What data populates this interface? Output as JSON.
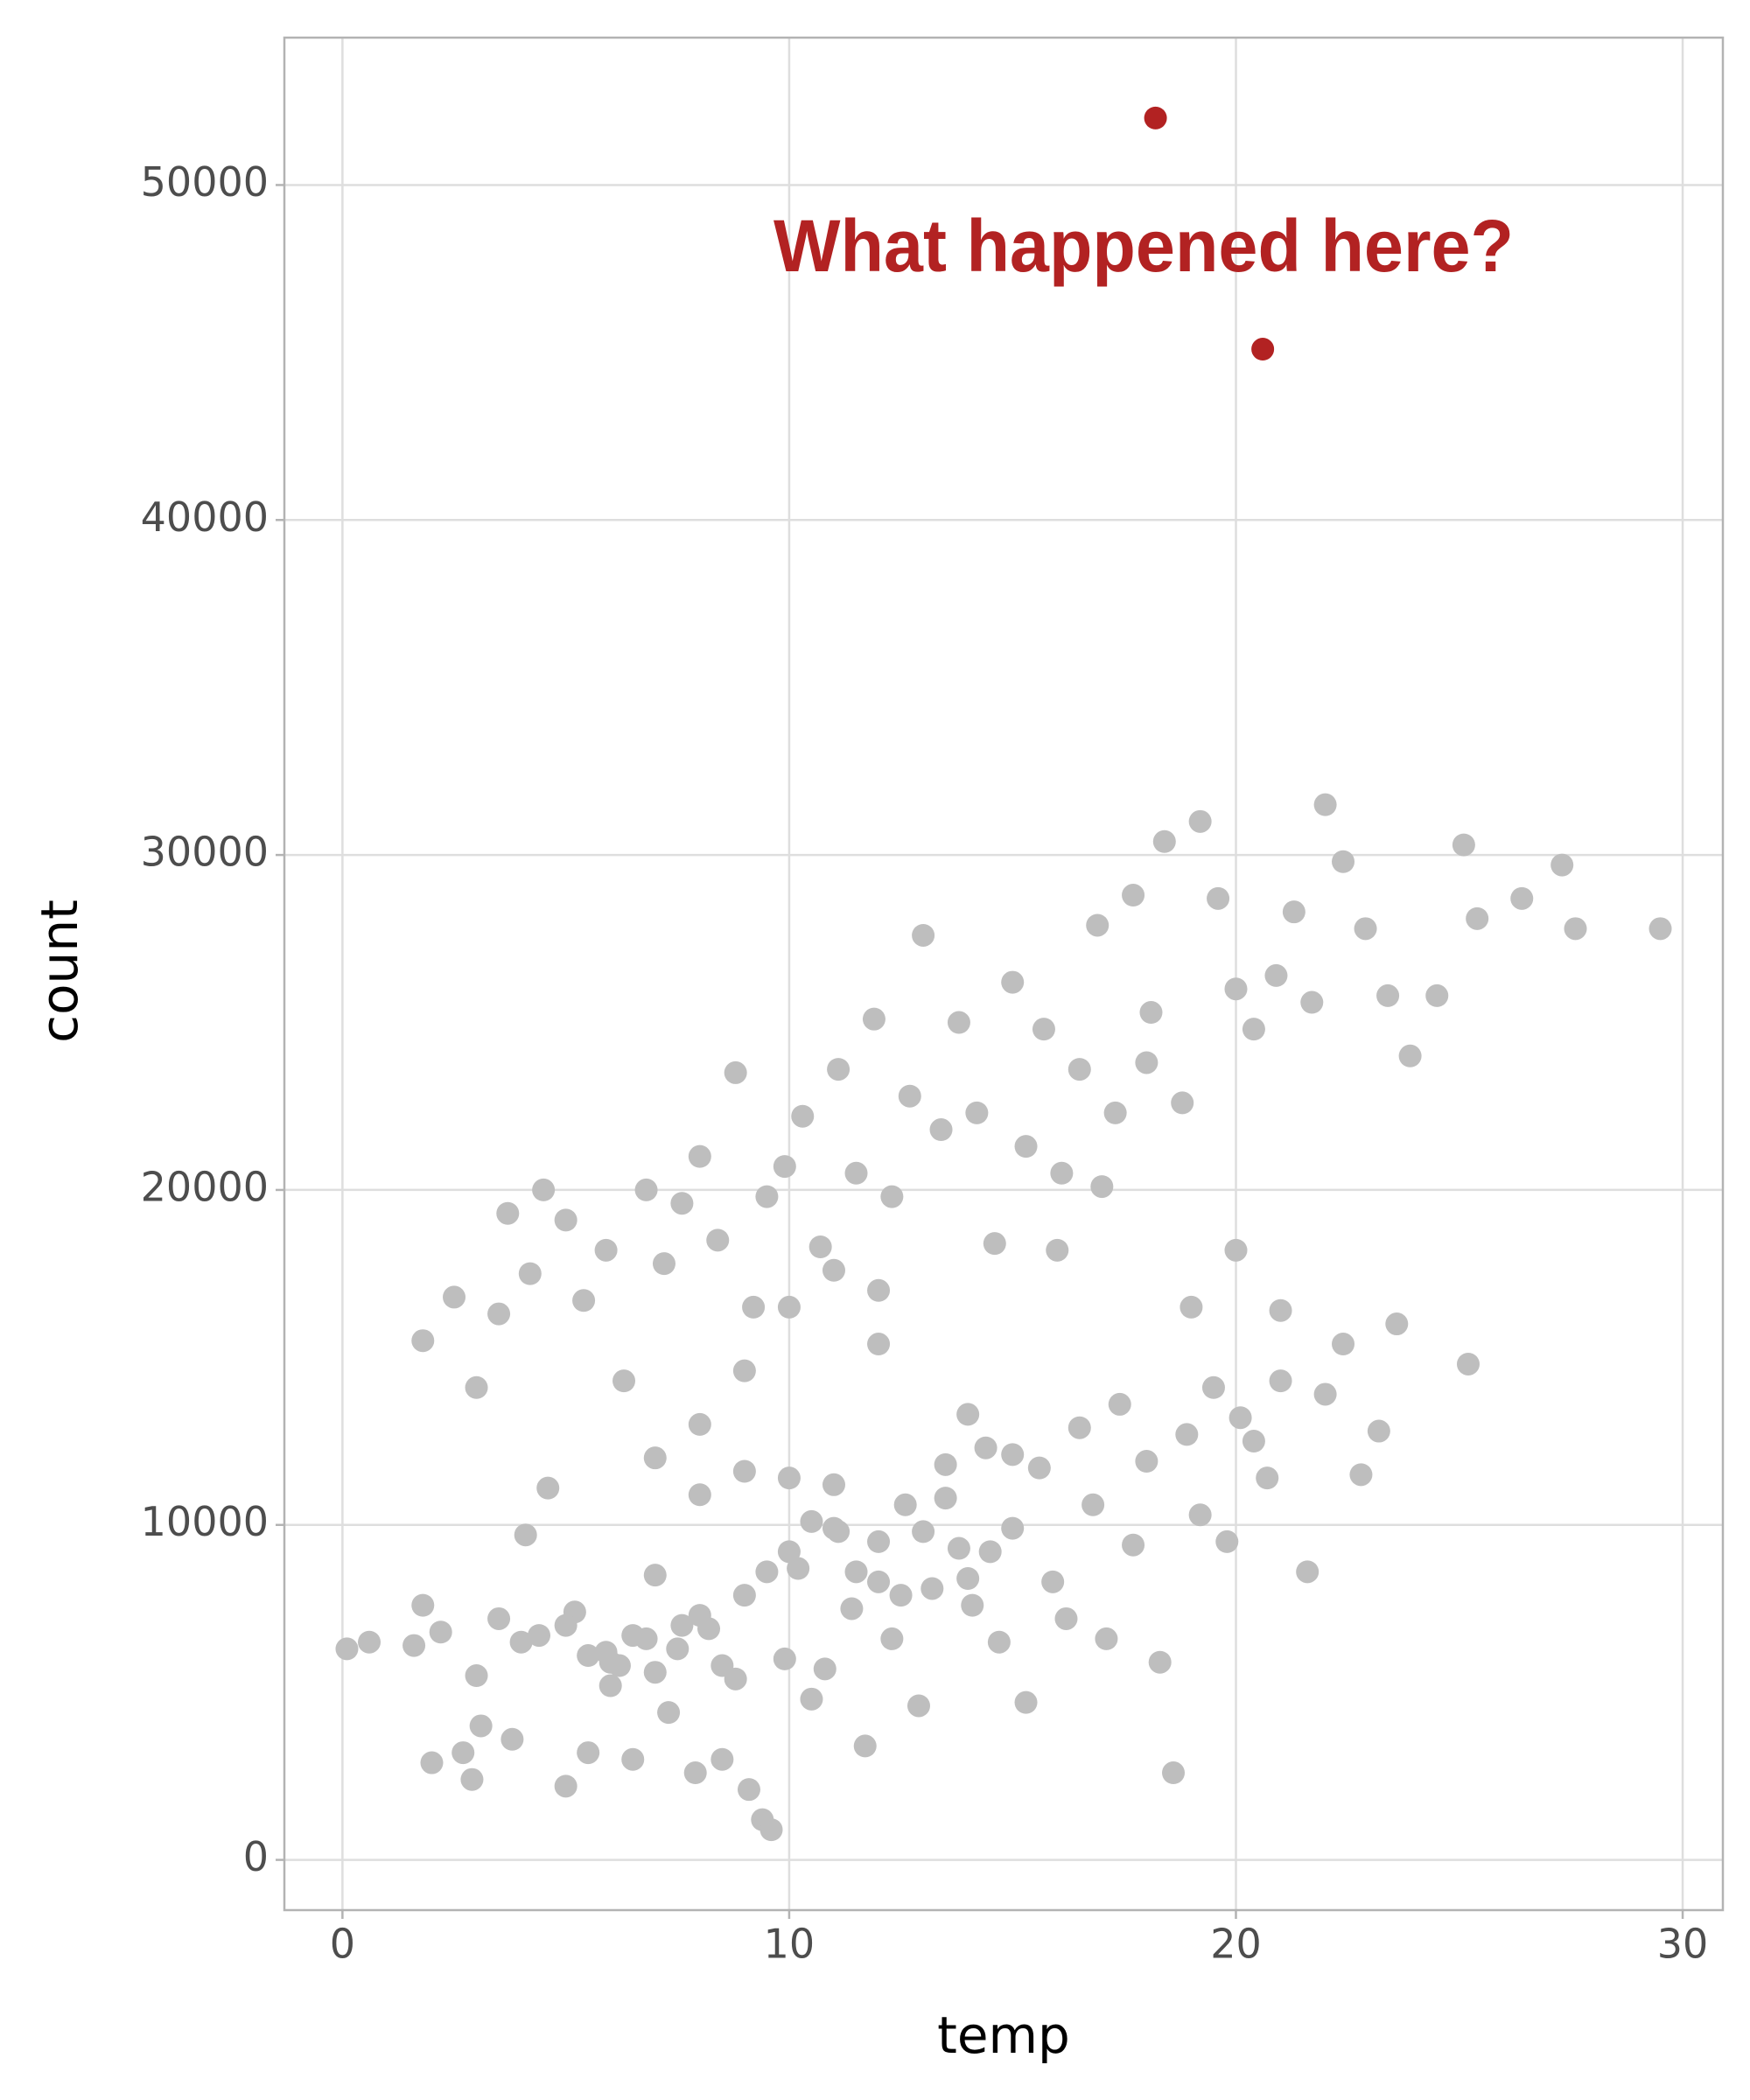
{
  "chart_data": {
    "type": "scatter",
    "x_label": "temp",
    "y_label": "count",
    "annotation": "What happened here?",
    "xlim": [
      -1.3,
      30.9
    ],
    "xticks": [
      0,
      10,
      20,
      30
    ],
    "ylim": [
      -1500,
      54400
    ],
    "yticks": [
      0,
      10000,
      20000,
      30000,
      40000,
      50000
    ],
    "grid": true,
    "series": [
      {
        "color": "#bebebe",
        "x": [
          0.1,
          0.6,
          1.6,
          1.8,
          2.0,
          2.2,
          2.7,
          2.9,
          3.1,
          3.5,
          3.8,
          4.1,
          4.4,
          4.6,
          5.0,
          5.2,
          5.5,
          5.9,
          6.2,
          6.5,
          6.8,
          7.0,
          7.3,
          7.6,
          7.9,
          8.2,
          8.5,
          8.8,
          9.1,
          9.4,
          9.6,
          9.9,
          10.2,
          10.5,
          10.8,
          11.1,
          11.4,
          11.7,
          12.0,
          12.3,
          12.6,
          12.9,
          13.2,
          13.5,
          13.8,
          14.1,
          14.4,
          14.7,
          15.0,
          15.3,
          15.6,
          15.9,
          16.2,
          16.5,
          16.8,
          17.1,
          17.4,
          17.7,
          18.0,
          18.3,
          18.6,
          18.9,
          19.2,
          19.5,
          19.8,
          20.1,
          20.4,
          20.7,
          21.0,
          21.6,
          22.0,
          22.4,
          22.8,
          23.2,
          23.6,
          25.2,
          8.0,
          9.0,
          10.0,
          11.0,
          1.8,
          2.5,
          3.0,
          3.5,
          3.7,
          4.2,
          4.5,
          5.0,
          5.4,
          5.9,
          6.3,
          6.8,
          7.2,
          7.6,
          8.0,
          8.4,
          8.8,
          9.2,
          9.5,
          9.9,
          10.3,
          10.7,
          11.1,
          11.5,
          11.9,
          12.3,
          12.7,
          13.0,
          13.4,
          13.8,
          14.2,
          14.6,
          15.0,
          15.3,
          15.7,
          16.1,
          16.5,
          16.9,
          17.3,
          17.7,
          18.1,
          18.4,
          18.8,
          19.2,
          19.6,
          20.0,
          20.4,
          20.9,
          21.3,
          21.7,
          22.0,
          22.4,
          22.9,
          23.4,
          23.9,
          24.5,
          25.1,
          25.4,
          26.4,
          27.3,
          27.6,
          29.5,
          16.0,
          17.0,
          18.0,
          19.0,
          20.0,
          21.0,
          12.0,
          14.0,
          10.5,
          11.0,
          11.5,
          12.0,
          12.5,
          13.0,
          13.5,
          14.0,
          14.5,
          15.0,
          5.5,
          6.0,
          6.5,
          7.0,
          7.5,
          8.0,
          8.5,
          9.0,
          9.5,
          10.0,
          3.0,
          4.0,
          5.0,
          6.0,
          7.0,
          8.0,
          9.0,
          10.0,
          11.0,
          12.0
        ],
        "values": [
          6300,
          6500,
          6400,
          7600,
          2900,
          6800,
          3200,
          2400,
          4000,
          7200,
          3600,
          9700,
          6700,
          11100,
          2200,
          7400,
          3200,
          6200,
          5800,
          3000,
          6600,
          8500,
          4400,
          7000,
          2600,
          6900,
          3000,
          5400,
          2100,
          1200,
          900,
          6000,
          8700,
          4800,
          5700,
          9800,
          7500,
          3400,
          8300,
          6600,
          10600,
          4600,
          8100,
          11800,
          9300,
          7600,
          12300,
          6500,
          9900,
          4700,
          11700,
          8300,
          7200,
          12900,
          10600,
          6600,
          13600,
          9400,
          11900,
          5900,
          2600,
          12700,
          10300,
          14100,
          9500,
          13200,
          12500,
          11400,
          14300,
          8600,
          13900,
          15400,
          11500,
          12800,
          16000,
          14800,
          10900,
          11600,
          9200,
          9900,
          15500,
          16800,
          14100,
          16300,
          19300,
          17500,
          20000,
          19100,
          16700,
          18200,
          14300,
          20000,
          17800,
          19600,
          21000,
          18500,
          23500,
          16500,
          19800,
          20700,
          22200,
          18300,
          23600,
          20500,
          25100,
          19800,
          22800,
          27600,
          21800,
          25000,
          22300,
          18400,
          26200,
          21300,
          24800,
          20500,
          23600,
          27900,
          22300,
          28800,
          25300,
          30400,
          22600,
          31000,
          28700,
          26000,
          24800,
          26400,
          28300,
          25600,
          31500,
          29800,
          27800,
          25800,
          24000,
          25800,
          30300,
          28100,
          28700,
          29700,
          27800,
          27800,
          18200,
          20100,
          23800,
          16500,
          18200,
          16400,
          15400,
          13300,
          10100,
          11200,
          8600,
          9500,
          7900,
          9800,
          10800,
          8400,
          9200,
          12100,
          6100,
          5200,
          6700,
          5600,
          6300,
          7300,
          5800,
          7900,
          8600,
          11400,
          5500,
          6500,
          7000,
          5900,
          12000,
          13000,
          14600,
          16500,
          17600,
          17000
        ]
      },
      {
        "color": "#b22222",
        "x": [
          18.2,
          20.6
        ],
        "values": [
          52000,
          45100
        ]
      }
    ]
  }
}
